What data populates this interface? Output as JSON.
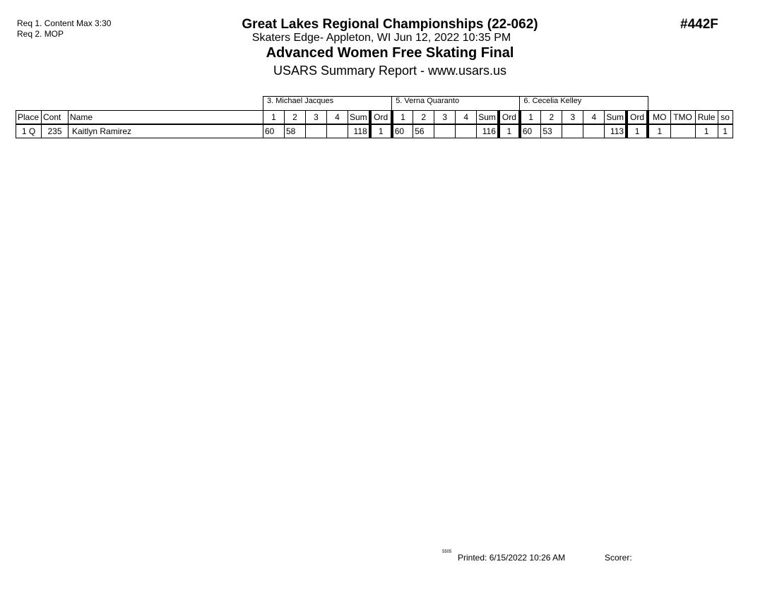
{
  "requirements": [
    "Req  1.  Content Max 3:30",
    "Req  2.  MOP"
  ],
  "header": {
    "title": "Great Lakes Regional Championships (22-062)",
    "location": "Skaters Edge- Appleton, WI  Jun 12, 2022  10:35 PM",
    "event": "Advanced Women Free Skating Final",
    "report": "USARS Summary Report - www.usars.us",
    "event_code": "#442F"
  },
  "table": {
    "judges": [
      "3.  Michael  Jacques",
      "5.  Verna  Quaranto",
      "6.  Cecelia Kelley"
    ],
    "columns": {
      "place": "Place",
      "cont": "Cont",
      "name": "Name",
      "s1": "1",
      "s2": "2",
      "s3": "3",
      "s4": "4",
      "sum": "Sum",
      "ord": "Ord",
      "mo": "MO",
      "tmo": "TMO",
      "rule": "Rule",
      "so": "so"
    },
    "rows": [
      {
        "place": "1 Q",
        "cont": "235",
        "name": "Kaitlyn Ramirez",
        "judges": [
          {
            "s1": "60",
            "s2": "58",
            "s3": "",
            "s4": "",
            "sum": "118",
            "ord": "1"
          },
          {
            "s1": "60",
            "s2": "56",
            "s3": "",
            "s4": "",
            "sum": "116",
            "ord": "1"
          },
          {
            "s1": "60",
            "s2": "53",
            "s3": "",
            "s4": "",
            "sum": "113",
            "ord": "1"
          }
        ],
        "mo": "1",
        "tmo": "",
        "rule": "1",
        "so": "1"
      }
    ]
  },
  "footer": {
    "code": "5505",
    "printed": "Printed:  6/15/2022  10:26 AM",
    "scorer": "Scorer:"
  }
}
